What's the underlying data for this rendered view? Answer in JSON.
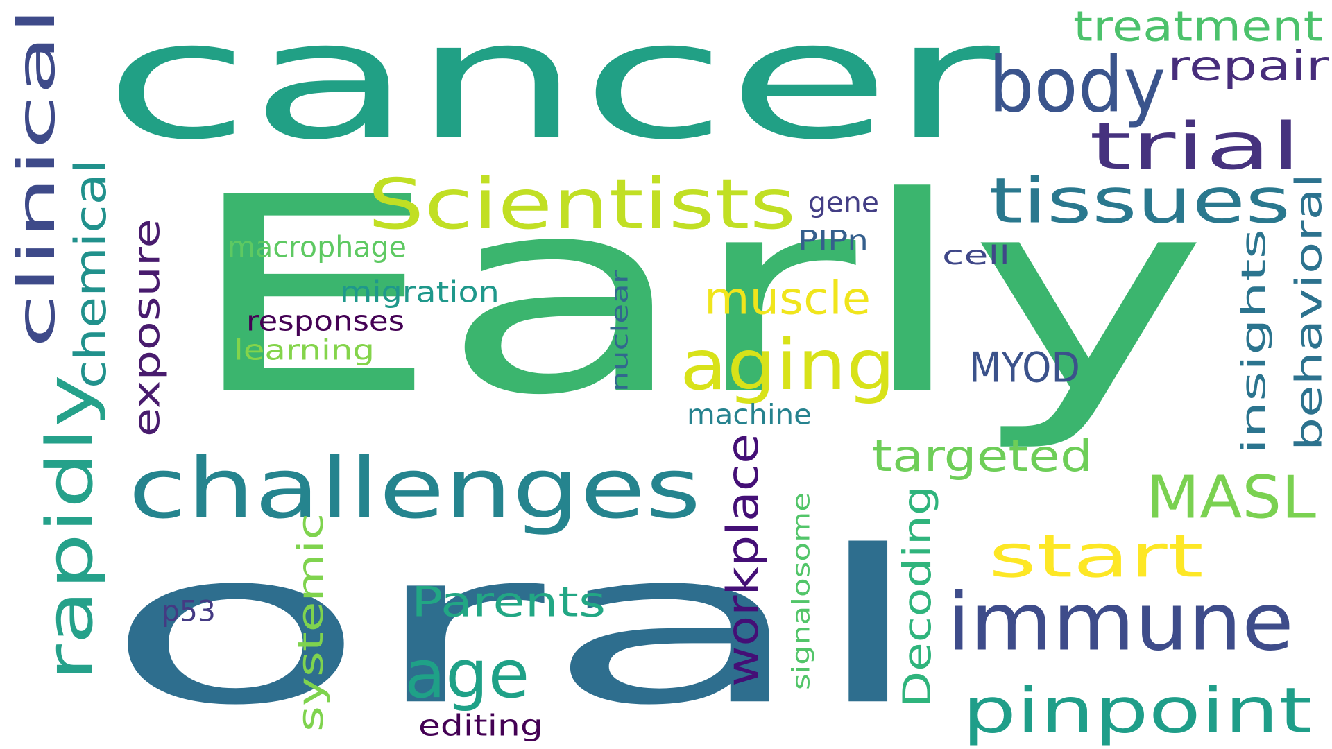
{
  "words": [
    {
      "text": "cancer",
      "color": "#21a085"
    },
    {
      "text": "Early",
      "color": "#3bb56e"
    },
    {
      "text": "oral",
      "color": "#2e6e8e"
    },
    {
      "text": "body",
      "color": "#3a548c"
    },
    {
      "text": "treatment",
      "color": "#4cc26c"
    },
    {
      "text": "repair",
      "color": "#472d7b"
    },
    {
      "text": "trial",
      "color": "#46327e"
    },
    {
      "text": "tissues",
      "color": "#2a788e"
    },
    {
      "text": "clinical",
      "color": "#3e4a89"
    },
    {
      "text": "chemical",
      "color": "#21918c"
    },
    {
      "text": "rapidly",
      "color": "#25a18a"
    },
    {
      "text": "exposure",
      "color": "#481b6d"
    },
    {
      "text": "Scientists",
      "color": "#c1df24"
    },
    {
      "text": "gene",
      "color": "#433e85"
    },
    {
      "text": "PIPn",
      "color": "#355f8d"
    },
    {
      "text": "cell",
      "color": "#3f4788"
    },
    {
      "text": "macrophage",
      "color": "#5ec962"
    },
    {
      "text": "migration",
      "color": "#1f988b"
    },
    {
      "text": "responses",
      "color": "#440154"
    },
    {
      "text": "learning",
      "color": "#84d44b"
    },
    {
      "text": "muscle",
      "color": "#f0e51c"
    },
    {
      "text": "aging",
      "color": "#d8e219"
    },
    {
      "text": "nuclear",
      "color": "#31688e"
    },
    {
      "text": "MYOD",
      "color": "#3b528b"
    },
    {
      "text": "machine",
      "color": "#26828e"
    },
    {
      "text": "insights",
      "color": "#2b748e"
    },
    {
      "text": "behavioral",
      "color": "#2c728e"
    },
    {
      "text": "challenges",
      "color": "#25848e"
    },
    {
      "text": "targeted",
      "color": "#6ece58"
    },
    {
      "text": "MASL",
      "color": "#7ad151"
    },
    {
      "text": "start",
      "color": "#fde725"
    },
    {
      "text": "immune",
      "color": "#3e4c8a"
    },
    {
      "text": "Parents",
      "color": "#22a784"
    },
    {
      "text": "age",
      "color": "#1fa187"
    },
    {
      "text": "workplace",
      "color": "#440f76"
    },
    {
      "text": "systemic",
      "color": "#7fd34e"
    },
    {
      "text": "signalosome",
      "color": "#52c569"
    },
    {
      "text": "Decoding",
      "color": "#2fb47c"
    },
    {
      "text": "pinpoint",
      "color": "#1f9e89"
    },
    {
      "text": "p53",
      "color": "#443a83"
    },
    {
      "text": "editing",
      "color": "#440154"
    }
  ]
}
